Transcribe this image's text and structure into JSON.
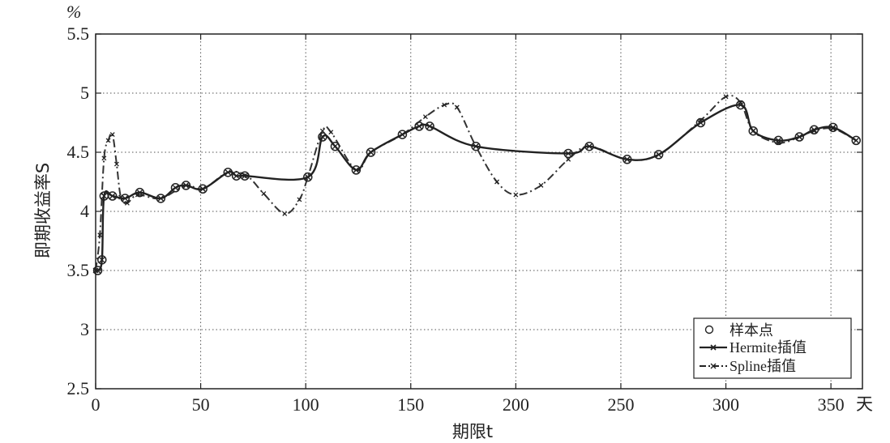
{
  "chart_data": {
    "type": "line",
    "xlabel": "期限t",
    "x_unit": "天",
    "ylabel": "即期收益率S",
    "y_unit": "%",
    "xlim": [
      0,
      365
    ],
    "ylim": [
      2.5,
      5.5
    ],
    "xticks": [
      0,
      50,
      100,
      150,
      200,
      250,
      300,
      350
    ],
    "yticks": [
      2.5,
      3,
      3.5,
      4,
      4.5,
      5,
      5.5
    ],
    "grid": true,
    "legend_position": "bottom-right",
    "series": [
      {
        "name": "样本点",
        "style": "markers",
        "x": [
          1,
          3,
          4,
          8,
          14,
          21,
          31,
          38,
          43,
          51,
          63,
          67,
          71,
          101,
          108,
          114,
          124,
          131,
          146,
          154,
          159,
          181,
          225,
          235,
          253,
          268,
          288,
          307,
          313,
          325,
          335,
          342,
          351,
          362
        ],
        "y": [
          3.5,
          3.59,
          4.13,
          4.13,
          4.11,
          4.16,
          4.11,
          4.2,
          4.22,
          4.19,
          4.33,
          4.3,
          4.3,
          4.29,
          4.63,
          4.55,
          4.35,
          4.5,
          4.65,
          4.72,
          4.72,
          4.55,
          4.49,
          4.55,
          4.44,
          4.48,
          4.75,
          4.9,
          4.68,
          4.6,
          4.63,
          4.69,
          4.71,
          4.6
        ]
      },
      {
        "name": "Hermite插值",
        "style": "solid-x",
        "x": [
          0,
          1,
          3,
          4,
          8,
          14,
          21,
          31,
          38,
          43,
          51,
          63,
          67,
          71,
          101,
          108,
          114,
          124,
          131,
          146,
          154,
          159,
          181,
          225,
          235,
          253,
          268,
          288,
          307,
          313,
          325,
          335,
          342,
          351,
          362
        ],
        "y": [
          3.5,
          3.5,
          3.59,
          4.13,
          4.13,
          4.11,
          4.16,
          4.11,
          4.2,
          4.22,
          4.19,
          4.33,
          4.3,
          4.3,
          4.29,
          4.63,
          4.55,
          4.35,
          4.5,
          4.65,
          4.72,
          4.72,
          4.55,
          4.49,
          4.55,
          4.44,
          4.48,
          4.75,
          4.9,
          4.68,
          4.6,
          4.63,
          4.69,
          4.71,
          4.6
        ]
      },
      {
        "name": "Spline插值",
        "style": "dashdot",
        "x": [
          0,
          2,
          4,
          6,
          8,
          10,
          12,
          15,
          20,
          31,
          43,
          51,
          63,
          72,
          80,
          90,
          97,
          101,
          108,
          112,
          124,
          131,
          146,
          157,
          166,
          172,
          181,
          191,
          200,
          212,
          225,
          235,
          253,
          268,
          288,
          300,
          307,
          313,
          325,
          335,
          342,
          351,
          362
        ],
        "y": [
          3.5,
          3.8,
          4.45,
          4.6,
          4.65,
          4.4,
          4.12,
          4.07,
          4.14,
          4.11,
          4.22,
          4.19,
          4.33,
          4.3,
          4.15,
          3.98,
          4.1,
          4.29,
          4.68,
          4.67,
          4.35,
          4.5,
          4.65,
          4.8,
          4.9,
          4.88,
          4.55,
          4.25,
          4.14,
          4.22,
          4.44,
          4.55,
          4.44,
          4.48,
          4.77,
          4.97,
          4.92,
          4.68,
          4.58,
          4.63,
          4.68,
          4.7,
          4.6
        ]
      }
    ]
  }
}
